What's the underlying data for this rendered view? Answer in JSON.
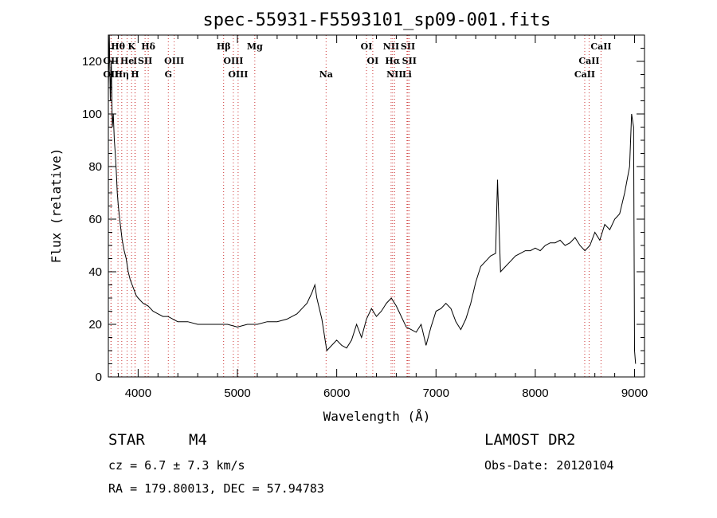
{
  "chart_data": {
    "type": "line",
    "title": "spec-55931-F5593101_sp09-001.fits",
    "xlabel": "Wavelength (Å)",
    "ylabel": "Flux (relative)",
    "xlim": [
      3700,
      9100
    ],
    "ylim": [
      0,
      130
    ],
    "xticks": [
      4000,
      5000,
      6000,
      7000,
      8000,
      9000
    ],
    "yticks": [
      0,
      20,
      40,
      60,
      80,
      100,
      120
    ],
    "grid": false,
    "series": [
      {
        "color": "#000000",
        "x": [
          3700,
          3710,
          3720,
          3730,
          3740,
          3750,
          3760,
          3770,
          3780,
          3790,
          3800,
          3820,
          3840,
          3860,
          3880,
          3900,
          3920,
          3940,
          3960,
          3980,
          4000,
          4050,
          4100,
          4150,
          4200,
          4250,
          4300,
          4350,
          4400,
          4450,
          4500,
          4600,
          4700,
          4800,
          4900,
          5000,
          5100,
          5200,
          5300,
          5400,
          5500,
          5600,
          5700,
          5750,
          5780,
          5800,
          5850,
          5900,
          5950,
          6000,
          6050,
          6100,
          6150,
          6200,
          6250,
          6300,
          6350,
          6400,
          6450,
          6500,
          6550,
          6600,
          6650,
          6700,
          6750,
          6800,
          6850,
          6900,
          6950,
          7000,
          7050,
          7100,
          7150,
          7200,
          7250,
          7300,
          7350,
          7400,
          7450,
          7500,
          7550,
          7600,
          7620,
          7650,
          7700,
          7750,
          7800,
          7850,
          7900,
          7950,
          8000,
          8050,
          8100,
          8150,
          8200,
          8250,
          8300,
          8350,
          8400,
          8450,
          8500,
          8550,
          8600,
          8650,
          8700,
          8750,
          8800,
          8850,
          8900,
          8950,
          8970,
          8990,
          9000,
          9010
        ],
        "values": [
          110,
          130,
          105,
          120,
          95,
          100,
          90,
          85,
          78,
          70,
          65,
          58,
          52,
          48,
          45,
          40,
          37,
          35,
          33,
          31,
          30,
          28,
          27,
          25,
          24,
          23,
          23,
          22,
          21,
          21,
          21,
          20,
          20,
          20,
          20,
          19,
          20,
          20,
          21,
          21,
          22,
          24,
          28,
          32,
          35,
          30,
          22,
          10,
          12,
          14,
          12,
          11,
          14,
          20,
          15,
          22,
          26,
          23,
          25,
          28,
          30,
          27,
          23,
          19,
          18,
          17,
          20,
          12,
          19,
          25,
          26,
          28,
          26,
          21,
          18,
          22,
          28,
          36,
          42,
          44,
          46,
          47,
          75,
          40,
          42,
          44,
          46,
          47,
          48,
          48,
          49,
          48,
          50,
          51,
          51,
          52,
          50,
          51,
          53,
          50,
          48,
          50,
          55,
          52,
          58,
          56,
          60,
          62,
          70,
          80,
          100,
          95,
          10,
          5
        ]
      }
    ],
    "line_marks": [
      {
        "label": "Hθ",
        "x": 3797,
        "row": 0
      },
      {
        "label": "K",
        "x": 3934,
        "row": 0
      },
      {
        "label": "Hδ",
        "x": 4102,
        "row": 0
      },
      {
        "label": "Hβ",
        "x": 4861,
        "row": 0
      },
      {
        "label": "Mg",
        "x": 5175,
        "row": 0
      },
      {
        "label": "OI",
        "x": 6300,
        "row": 0
      },
      {
        "label": "NII",
        "x": 6548,
        "row": 0
      },
      {
        "label": "SII",
        "x": 6717,
        "row": 0
      },
      {
        "label": "CaII",
        "x": 8662,
        "row": 0
      },
      {
        "label": "OII",
        "x": 3727,
        "row": 1
      },
      {
        "label": "He",
        "x": 3889,
        "row": 1
      },
      {
        "label": "I",
        "x": 3970,
        "row": 1
      },
      {
        "label": "SII",
        "x": 4070,
        "row": 1
      },
      {
        "label": "OIII",
        "x": 4363,
        "row": 1
      },
      {
        "label": "OIII",
        "x": 4959,
        "row": 1
      },
      {
        "label": "OI",
        "x": 6363,
        "row": 1
      },
      {
        "label": "Hα",
        "x": 6563,
        "row": 1
      },
      {
        "label": "SII",
        "x": 6731,
        "row": 1
      },
      {
        "label": "CaII",
        "x": 8542,
        "row": 1
      },
      {
        "label": "OII",
        "x": 3727,
        "row": 2
      },
      {
        "label": "Hη",
        "x": 3835,
        "row": 2
      },
      {
        "label": "H",
        "x": 3968,
        "row": 2
      },
      {
        "label": "G",
        "x": 4304,
        "row": 2
      },
      {
        "label": "OIII",
        "x": 5007,
        "row": 2
      },
      {
        "label": "Na",
        "x": 5893,
        "row": 2
      },
      {
        "label": "NII",
        "x": 6583,
        "row": 2
      },
      {
        "label": "Li",
        "x": 6708,
        "row": 2
      },
      {
        "label": "CaII",
        "x": 8498,
        "row": 2
      }
    ]
  },
  "info": {
    "object_class": "STAR",
    "subclass": "M4",
    "survey": "LAMOST DR2",
    "cz": "cz = 6.7 ± 7.3 km/s",
    "obs_date": "Obs-Date: 20120104",
    "coords": "RA = 179.80013, DEC =  57.94783"
  }
}
